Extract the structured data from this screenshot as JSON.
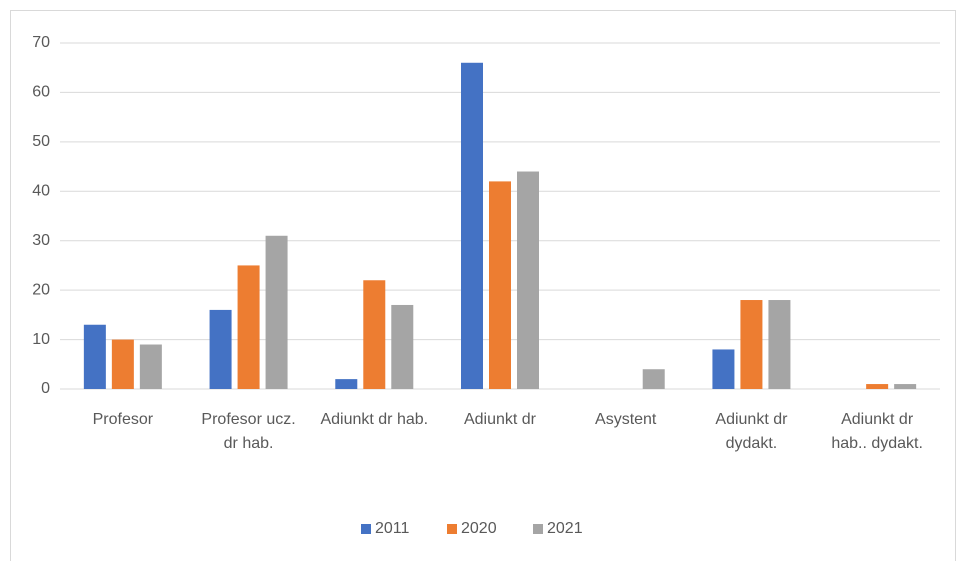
{
  "chart_data": {
    "type": "bar",
    "categories": [
      "Profesor",
      "Profesor ucz. dr hab.",
      "Adiunkt dr hab.",
      "Adiunkt dr",
      "Asystent",
      "Adiunkt dr dydakt.",
      "Adiunkt dr hab.. dydakt."
    ],
    "series": [
      {
        "name": "2011",
        "color": "#4472c4",
        "values": [
          13,
          16,
          2,
          66,
          0,
          8,
          0
        ]
      },
      {
        "name": "2020",
        "color": "#ed7d31",
        "values": [
          10,
          25,
          22,
          42,
          0,
          18,
          1
        ]
      },
      {
        "name": "2021",
        "color": "#a5a5a5",
        "values": [
          9,
          31,
          17,
          44,
          4,
          18,
          1
        ]
      }
    ],
    "ylim": [
      0,
      70
    ],
    "yticks": [
      0,
      10,
      20,
      30,
      40,
      50,
      60,
      70
    ],
    "grid": true,
    "legend": "bottom"
  }
}
